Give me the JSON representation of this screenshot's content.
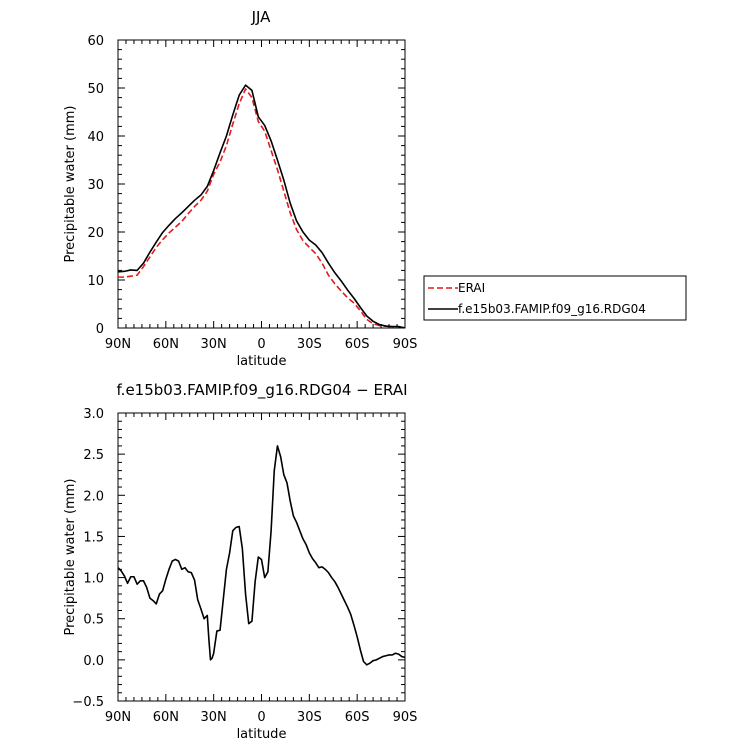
{
  "chart_data": [
    {
      "type": "line",
      "title": "JJA",
      "xlabel": "latitude",
      "ylabel": "Precipitable water (mm)",
      "x_ticks": [
        {
          "value": 90,
          "label": "90N"
        },
        {
          "value": 60,
          "label": "60N"
        },
        {
          "value": 30,
          "label": "30N"
        },
        {
          "value": 0,
          "label": "0"
        },
        {
          "value": -30,
          "label": "30S"
        },
        {
          "value": -60,
          "label": "60S"
        },
        {
          "value": -90,
          "label": "90S"
        }
      ],
      "y_ticks": [
        0,
        10,
        20,
        30,
        40,
        50,
        60
      ],
      "xlim": [
        90,
        -90
      ],
      "ylim": [
        0,
        60
      ],
      "legend_position": "outside-right",
      "series": [
        {
          "name": "ERAI",
          "color": "#e41a1c",
          "dash": "dashed",
          "x": [
            90,
            86,
            82,
            78,
            74,
            70,
            66,
            62,
            58,
            54,
            50,
            46,
            42,
            38,
            34,
            30,
            26,
            22,
            18,
            14,
            10,
            6,
            2,
            -2,
            -6,
            -10,
            -14,
            -18,
            -22,
            -26,
            -30,
            -34,
            -38,
            -42,
            -46,
            -50,
            -54,
            -58,
            -62,
            -66,
            -70,
            -74,
            -78,
            -82,
            -86,
            -90
          ],
          "values": [
            10.6,
            10.6,
            10.8,
            11,
            12.8,
            14.8,
            16.8,
            18.4,
            19.8,
            21,
            22.2,
            23.8,
            25.3,
            26.6,
            28.5,
            32,
            34.6,
            38,
            42.5,
            46.7,
            49.8,
            48,
            43,
            41,
            37,
            33,
            28.5,
            24,
            20.5,
            18.2,
            16.8,
            15.5,
            13.5,
            11,
            9.2,
            7.7,
            6.3,
            5.2,
            3.6,
            1.8,
            0.9,
            0.5,
            0.4,
            0.2,
            0.1,
            0.0
          ]
        },
        {
          "name": "f.e15b03.FAMIP.f09_g16.RDG04",
          "color": "#000000",
          "dash": "solid",
          "x": [
            90,
            86,
            82,
            78,
            74,
            70,
            66,
            62,
            58,
            54,
            50,
            46,
            42,
            38,
            34,
            30,
            26,
            22,
            18,
            14,
            10,
            6,
            2,
            -2,
            -6,
            -10,
            -14,
            -18,
            -22,
            -26,
            -30,
            -34,
            -38,
            -42,
            -46,
            -50,
            -54,
            -58,
            -62,
            -66,
            -70,
            -74,
            -78,
            -82,
            -86,
            -90
          ],
          "values": [
            11.7,
            11.8,
            12.1,
            12.0,
            13.5,
            15.8,
            17.9,
            19.9,
            21.4,
            22.8,
            24,
            25.3,
            26.6,
            27.7,
            29.5,
            32.8,
            36.5,
            40,
            44.4,
            48.5,
            50.6,
            49.5,
            44,
            42.2,
            39,
            35,
            30.8,
            26,
            22.3,
            20,
            18.3,
            17.3,
            15.7,
            13.5,
            11.5,
            9.8,
            7.9,
            6.2,
            4.3,
            2.5,
            1.4,
            0.7,
            0.4,
            0.3,
            0.3,
            0.0
          ]
        }
      ]
    },
    {
      "type": "line",
      "title": "f.e15b03.FAMIP.f09_g16.RDG04 − ERAI",
      "xlabel": "latitude",
      "ylabel": "Precipitable water (mm)",
      "x_ticks": [
        {
          "value": 90,
          "label": "90N"
        },
        {
          "value": 60,
          "label": "60N"
        },
        {
          "value": 30,
          "label": "30N"
        },
        {
          "value": 0,
          "label": "0"
        },
        {
          "value": -30,
          "label": "30S"
        },
        {
          "value": -60,
          "label": "60S"
        },
        {
          "value": -90,
          "label": "90S"
        }
      ],
      "y_ticks": [
        {
          "value": -0.5,
          "label": "−0.5"
        },
        {
          "value": 0,
          "label": "0.0"
        },
        {
          "value": 0.5,
          "label": "0.5"
        },
        {
          "value": 1,
          "label": "1.0"
        },
        {
          "value": 1.5,
          "label": "1.5"
        },
        {
          "value": 2,
          "label": "2.0"
        },
        {
          "value": 2.5,
          "label": "2.5"
        },
        {
          "value": 3,
          "label": "3.0"
        }
      ],
      "xlim": [
        90,
        -90
      ],
      "ylim": [
        -0.5,
        3.0
      ],
      "series": [
        {
          "color": "#000000",
          "x": [
            90,
            88,
            86,
            84,
            82,
            80,
            78,
            76,
            74,
            72,
            70,
            68,
            66,
            64,
            62,
            60,
            58,
            56,
            54,
            52,
            50,
            48,
            46,
            44,
            42,
            40,
            38,
            36,
            34,
            33,
            32,
            31,
            30,
            28,
            26,
            24,
            22,
            20,
            18,
            16,
            14,
            12,
            10,
            8,
            6,
            4,
            2,
            0,
            -2,
            -4,
            -6,
            -8,
            -10,
            -12,
            -14,
            -16,
            -18,
            -20,
            -22,
            -24,
            -26,
            -28,
            -30,
            -32,
            -34,
            -36,
            -38,
            -40,
            -42,
            -44,
            -46,
            -48,
            -50,
            -52,
            -54,
            -56,
            -58,
            -60,
            -62,
            -64,
            -66,
            -68,
            -70,
            -72,
            -74,
            -76,
            -78,
            -80,
            -82,
            -84,
            -86,
            -88,
            -90
          ],
          "values": [
            1.12,
            1.08,
            1.02,
            0.93,
            1.01,
            1.01,
            0.92,
            0.96,
            0.96,
            0.88,
            0.75,
            0.72,
            0.68,
            0.8,
            0.84,
            0.98,
            1.1,
            1.2,
            1.22,
            1.2,
            1.1,
            1.12,
            1.07,
            1.06,
            0.97,
            0.73,
            0.62,
            0.5,
            0.54,
            0.25,
            0.0,
            0.02,
            0.08,
            0.35,
            0.36,
            0.73,
            1.1,
            1.3,
            1.57,
            1.61,
            1.62,
            1.35,
            0.8,
            0.44,
            0.47,
            0.95,
            1.25,
            1.22,
            1.0,
            1.07,
            1.56,
            2.3,
            2.6,
            2.47,
            2.25,
            2.15,
            1.93,
            1.75,
            1.67,
            1.57,
            1.47,
            1.4,
            1.3,
            1.23,
            1.18,
            1.12,
            1.13,
            1.1,
            1.06,
            1.0,
            0.95,
            0.88,
            0.8,
            0.72,
            0.64,
            0.55,
            0.42,
            0.28,
            0.12,
            -0.02,
            -0.06,
            -0.04,
            -0.01,
            0.0,
            0.02,
            0.04,
            0.05,
            0.06,
            0.06,
            0.08,
            0.07,
            0.04,
            0.03
          ]
        }
      ]
    }
  ]
}
